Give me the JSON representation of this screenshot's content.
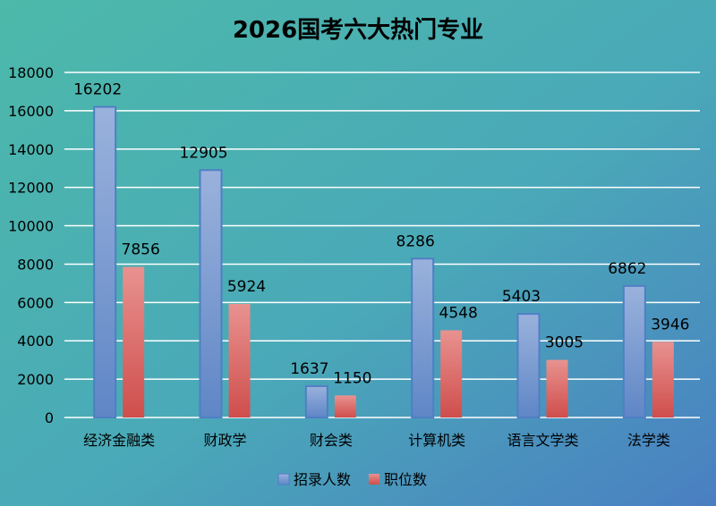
{
  "chart_data": {
    "type": "bar",
    "title": "2026国考六大热门专业",
    "categories": [
      "经济金融类",
      "财政学",
      "财会类",
      "计算机类",
      "语言文学类",
      "法学类"
    ],
    "series": [
      {
        "name": "招录人数",
        "values": [
          16202,
          12905,
          1637,
          8286,
          5403,
          6862
        ],
        "color": "#7f9fd4"
      },
      {
        "name": "职位数",
        "values": [
          7856,
          5924,
          1150,
          4548,
          3005,
          3946
        ],
        "color": "#e07a78"
      }
    ],
    "ylim": [
      0,
      18000
    ],
    "yticks": [
      0,
      2000,
      4000,
      6000,
      8000,
      10000,
      12000,
      14000,
      16000,
      18000
    ],
    "grid": true,
    "legend": "bottom",
    "xlabel": "",
    "ylabel": "",
    "background": [
      "#4cb9aa",
      "#4a7fc2"
    ]
  }
}
